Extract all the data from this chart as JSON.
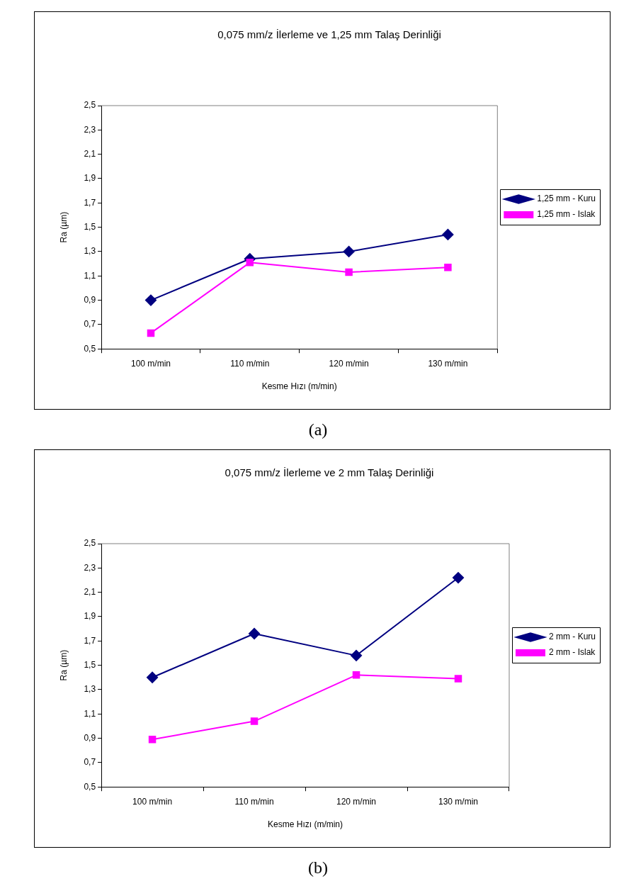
{
  "chart_data": [
    {
      "type": "line",
      "title": "0,075 mm/z İlerleme ve 1,25 mm Talaş Derinliği",
      "xlabel": "Kesme Hızı (m/min)",
      "ylabel": "Ra (µm)",
      "categories": [
        "100 m/min",
        "110 m/min",
        "120 m/min",
        "130 m/min"
      ],
      "series": [
        {
          "name": "1,25 mm - Kuru",
          "color": "#000080",
          "marker": "diamond",
          "values": [
            0.9,
            1.24,
            1.3,
            1.44
          ]
        },
        {
          "name": "1,25 mm - Islak",
          "color": "#ff00ff",
          "marker": "square",
          "values": [
            0.63,
            1.21,
            1.13,
            1.17
          ]
        }
      ],
      "ylim": [
        0.5,
        2.5
      ],
      "yticks": [
        {
          "value": 0.5,
          "label": "0,5"
        },
        {
          "value": 0.7,
          "label": "0,7"
        },
        {
          "value": 0.9,
          "label": "0,9"
        },
        {
          "value": 1.1,
          "label": "1,1"
        },
        {
          "value": 1.3,
          "label": "1,3"
        },
        {
          "value": 1.5,
          "label": "1,5"
        },
        {
          "value": 1.7,
          "label": "1,7"
        },
        {
          "value": 1.9,
          "label": "1,9"
        },
        {
          "value": 2.1,
          "label": "2,1"
        },
        {
          "value": 2.3,
          "label": "2,3"
        },
        {
          "value": 2.5,
          "label": "2,5"
        }
      ],
      "legend": "right",
      "annotations": [
        "(a)"
      ]
    },
    {
      "type": "line",
      "title": "0,075 mm/z İlerleme ve 2 mm Talaş Derinliği",
      "xlabel": "Kesme Hızı (m/min)",
      "ylabel": "Ra (µm)",
      "categories": [
        "100 m/min",
        "110 m/min",
        "120 m/min",
        "130 m/min"
      ],
      "series": [
        {
          "name": "2 mm - Kuru",
          "color": "#000080",
          "marker": "diamond",
          "values": [
            1.4,
            1.76,
            1.58,
            2.22
          ]
        },
        {
          "name": "2 mm - Islak",
          "color": "#ff00ff",
          "marker": "square",
          "values": [
            0.89,
            1.04,
            1.42,
            1.39
          ]
        }
      ],
      "ylim": [
        0.5,
        2.5
      ],
      "yticks": [
        {
          "value": 0.5,
          "label": "0,5"
        },
        {
          "value": 0.7,
          "label": "0,7"
        },
        {
          "value": 0.9,
          "label": "0,9"
        },
        {
          "value": 1.1,
          "label": "1,1"
        },
        {
          "value": 1.3,
          "label": "1,3"
        },
        {
          "value": 1.5,
          "label": "1,5"
        },
        {
          "value": 1.7,
          "label": "1,7"
        },
        {
          "value": 1.9,
          "label": "1,9"
        },
        {
          "value": 2.1,
          "label": "2,1"
        },
        {
          "value": 2.3,
          "label": "2,3"
        },
        {
          "value": 2.5,
          "label": "2,5"
        }
      ],
      "legend": "right",
      "annotations": [
        "(b)"
      ]
    }
  ]
}
